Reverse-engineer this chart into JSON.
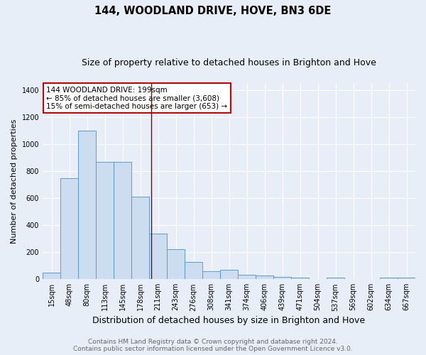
{
  "title": "144, WOODLAND DRIVE, HOVE, BN3 6DE",
  "subtitle": "Size of property relative to detached houses in Brighton and Hove",
  "xlabel": "Distribution of detached houses by size in Brighton and Hove",
  "ylabel": "Number of detached properties",
  "categories": [
    "15sqm",
    "48sqm",
    "80sqm",
    "113sqm",
    "145sqm",
    "178sqm",
    "211sqm",
    "243sqm",
    "276sqm",
    "308sqm",
    "341sqm",
    "374sqm",
    "406sqm",
    "439sqm",
    "471sqm",
    "504sqm",
    "537sqm",
    "569sqm",
    "602sqm",
    "634sqm",
    "667sqm"
  ],
  "values": [
    47,
    750,
    1100,
    870,
    870,
    610,
    340,
    225,
    130,
    62,
    70,
    32,
    30,
    20,
    14,
    0,
    10,
    0,
    0,
    10,
    10
  ],
  "bar_color": "#ccddf0",
  "bar_edge_color": "#5b9bd5",
  "vline_color": "#8b0000",
  "annotation_text": "144 WOODLAND DRIVE: 199sqm\n← 85% of detached houses are smaller (3,608)\n15% of semi-detached houses are larger (653) →",
  "annotation_box_facecolor": "white",
  "annotation_box_edgecolor": "#cc0000",
  "background_color": "#e8eef8",
  "grid_color": "#ffffff",
  "footer_line1": "Contains HM Land Registry data © Crown copyright and database right 2024.",
  "footer_line2": "Contains public sector information licensed under the Open Government Licence v3.0.",
  "ylim": [
    0,
    1450
  ],
  "yticks": [
    0,
    200,
    400,
    600,
    800,
    1000,
    1200,
    1400
  ],
  "title_fontsize": 10.5,
  "subtitle_fontsize": 9,
  "xlabel_fontsize": 9,
  "ylabel_fontsize": 8,
  "tick_fontsize": 7,
  "footer_fontsize": 6.5,
  "annot_fontsize": 7.5
}
